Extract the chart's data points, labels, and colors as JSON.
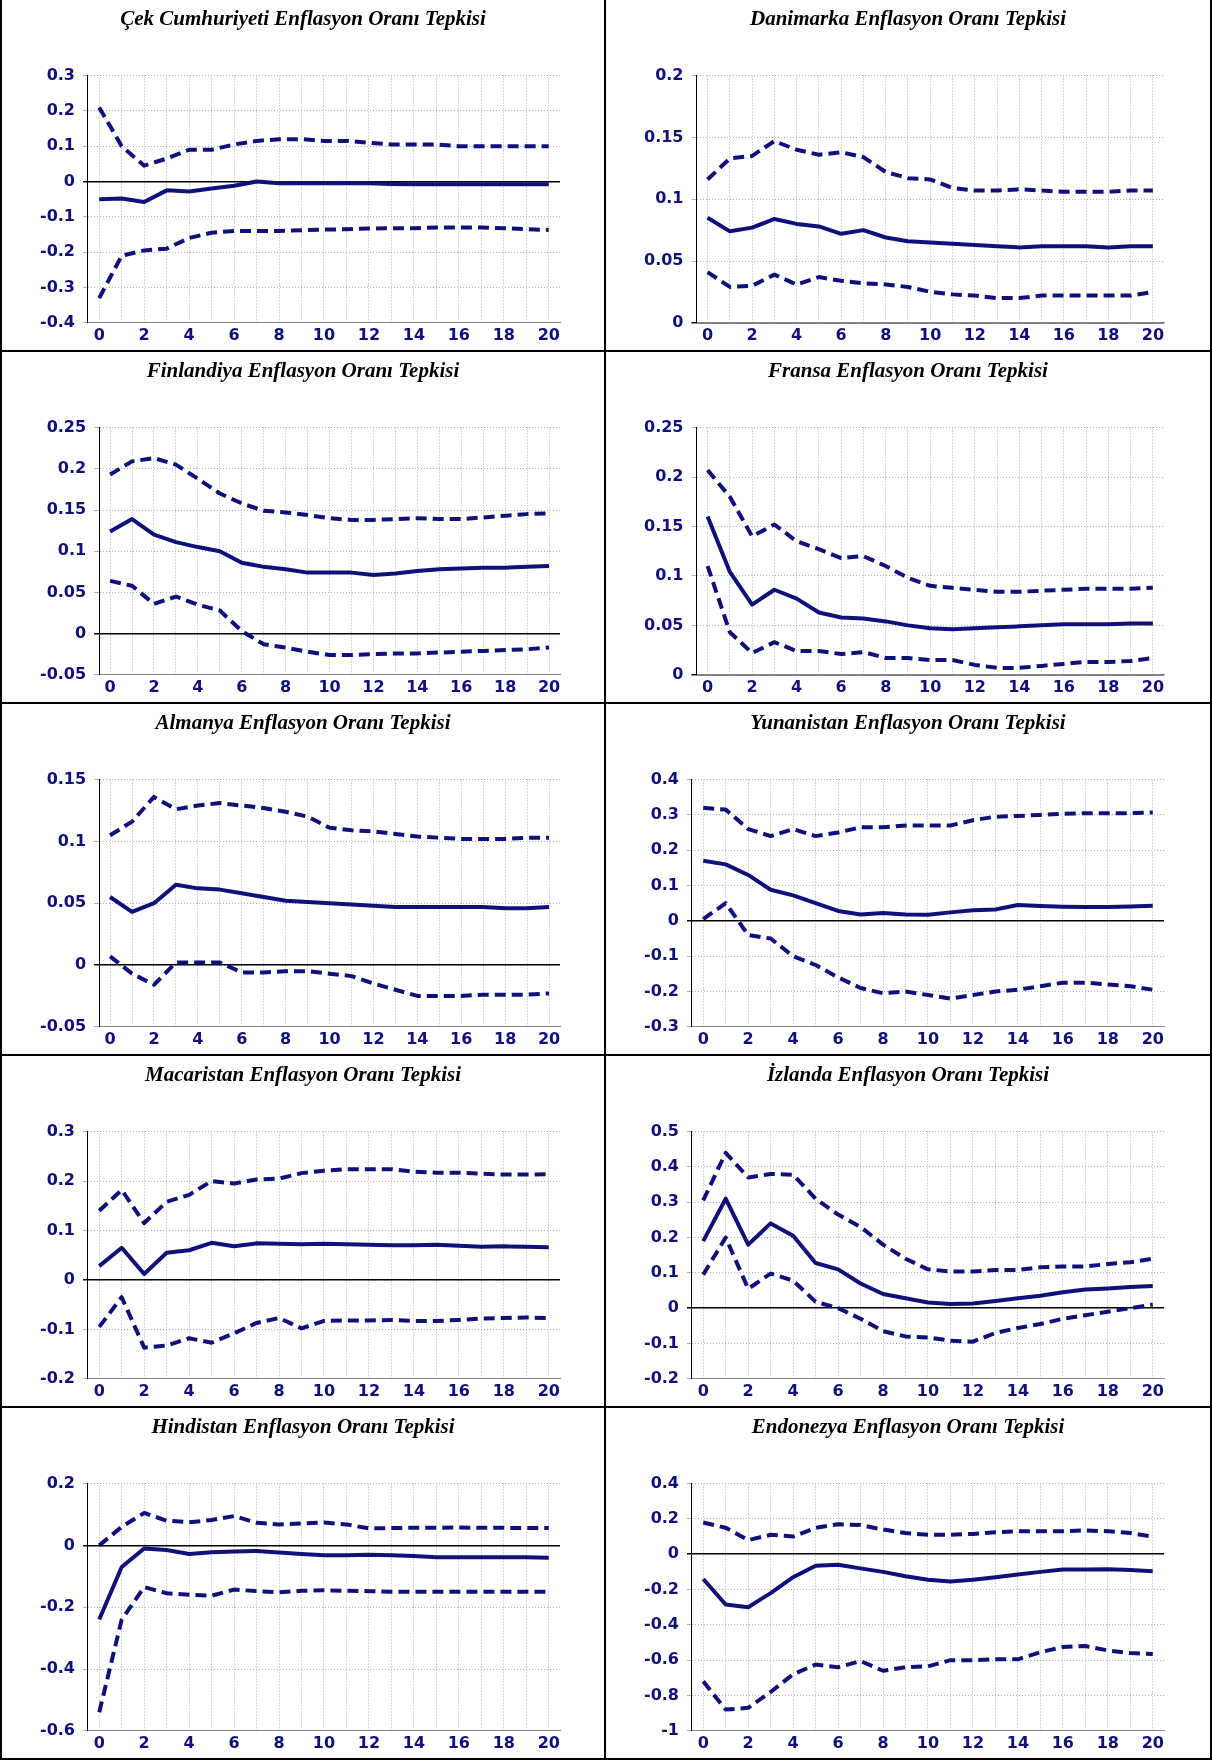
{
  "chart_data": [
    {
      "type": "line",
      "title": "Çek Cumhuriyeti Enflasyon Oranı Tepkisi",
      "x": [
        0,
        1,
        2,
        3,
        4,
        5,
        6,
        7,
        8,
        9,
        10,
        11,
        12,
        13,
        14,
        15,
        16,
        17,
        18,
        19,
        20
      ],
      "xlim": [
        -0.5,
        20.5
      ],
      "xticks": [
        0,
        {
          "value": 1,
          "label": null
        },
        2,
        {
          "value": 3,
          "label": null
        },
        4,
        {
          "value": 5,
          "label": null
        },
        6,
        {
          "value": 7,
          "label": null
        },
        8,
        {
          "value": 9,
          "label": null
        },
        10,
        {
          "value": 11,
          "label": null
        },
        12,
        {
          "value": 13,
          "label": null
        },
        14,
        {
          "value": 15,
          "label": null
        },
        16,
        {
          "value": 17,
          "label": null
        },
        18,
        {
          "value": 19,
          "label": null
        },
        20
      ],
      "ylim": [
        -0.4,
        0.3
      ],
      "yticks": [
        -0.4,
        -0.3,
        -0.2,
        -0.1,
        0,
        0.1,
        0.2,
        0.3
      ],
      "grid": true,
      "series": [
        {
          "color": "#10107a",
          "line_style": "dashed",
          "values": [
            0.21,
            0.1,
            0.045,
            0.065,
            0.09,
            0.09,
            0.105,
            0.115,
            0.12,
            0.12,
            0.115,
            0.115,
            0.11,
            0.105,
            0.105,
            0.105,
            0.1,
            0.1,
            0.1,
            0.1,
            0.1
          ]
        },
        {
          "color": "#10107a",
          "line_style": "solid",
          "values": [
            -0.05,
            -0.048,
            -0.058,
            -0.025,
            -0.028,
            -0.02,
            -0.012,
            0,
            -0.005,
            -0.004,
            -0.005,
            -0.004,
            -0.005,
            -0.007,
            -0.008,
            -0.008,
            -0.008,
            -0.008,
            -0.008,
            -0.008,
            -0.008
          ]
        },
        {
          "color": "#10107a",
          "line_style": "dashed",
          "values": [
            -0.33,
            -0.21,
            -0.195,
            -0.19,
            -0.16,
            -0.145,
            -0.14,
            -0.14,
            -0.14,
            -0.138,
            -0.136,
            -0.135,
            -0.133,
            -0.132,
            -0.132,
            -0.13,
            -0.13,
            -0.13,
            -0.132,
            -0.135,
            -0.137
          ]
        }
      ]
    },
    {
      "type": "line",
      "title": "Danimarka Enflasyon Oranı Tepkisi",
      "x": [
        0,
        1,
        2,
        3,
        4,
        5,
        6,
        7,
        8,
        9,
        10,
        11,
        12,
        13,
        14,
        15,
        16,
        17,
        18,
        19,
        20
      ],
      "xlim": [
        -0.5,
        20.5
      ],
      "xticks": [
        0,
        {
          "value": 1,
          "label": null
        },
        2,
        {
          "value": 3,
          "label": null
        },
        4,
        {
          "value": 5,
          "label": null
        },
        6,
        {
          "value": 7,
          "label": null
        },
        8,
        {
          "value": 9,
          "label": null
        },
        10,
        {
          "value": 11,
          "label": null
        },
        12,
        {
          "value": 13,
          "label": null
        },
        14,
        {
          "value": 15,
          "label": null
        },
        16,
        {
          "value": 17,
          "label": null
        },
        18,
        {
          "value": 19,
          "label": null
        },
        20
      ],
      "ylim": [
        0,
        0.2
      ],
      "yticks": [
        0,
        0.05,
        0.1,
        0.15,
        0.2
      ],
      "grid": true,
      "series": [
        {
          "color": "#10107a",
          "line_style": "dashed",
          "values": [
            0.116,
            0.133,
            0.135,
            0.147,
            0.14,
            0.136,
            0.138,
            0.134,
            0.122,
            0.117,
            0.116,
            0.109,
            0.107,
            0.107,
            0.108,
            0.107,
            0.106,
            0.106,
            0.106,
            0.107,
            0.107
          ]
        },
        {
          "color": "#10107a",
          "line_style": "solid",
          "values": [
            0.085,
            0.074,
            0.077,
            0.084,
            0.08,
            0.078,
            0.072,
            0.075,
            0.069,
            0.066,
            0.065,
            0.064,
            0.063,
            0.062,
            0.061,
            0.062,
            0.062,
            0.062,
            0.061,
            0.062,
            0.062
          ]
        },
        {
          "color": "#10107a",
          "line_style": "dashed",
          "values": [
            0.041,
            0.029,
            0.03,
            0.039,
            0.031,
            0.037,
            0.034,
            0.032,
            0.031,
            0.029,
            0.025,
            0.023,
            0.022,
            0.02,
            0.02,
            0.022,
            0.022,
            0.022,
            0.022,
            0.022,
            0.025
          ]
        }
      ]
    },
    {
      "type": "line",
      "title": "Finlandiya Enflasyon Oranı Tepkisi",
      "x": [
        0,
        1,
        2,
        3,
        4,
        5,
        6,
        7,
        8,
        9,
        10,
        11,
        12,
        13,
        14,
        15,
        16,
        17,
        18,
        19,
        20
      ],
      "xlim": [
        -0.5,
        20.5
      ],
      "xticks": [
        0,
        {
          "value": 1,
          "label": null
        },
        2,
        {
          "value": 3,
          "label": null
        },
        4,
        {
          "value": 5,
          "label": null
        },
        6,
        {
          "value": 7,
          "label": null
        },
        8,
        {
          "value": 9,
          "label": null
        },
        10,
        {
          "value": 11,
          "label": null
        },
        12,
        {
          "value": 13,
          "label": null
        },
        14,
        {
          "value": 15,
          "label": null
        },
        16,
        {
          "value": 17,
          "label": null
        },
        18,
        {
          "value": 19,
          "label": null
        },
        20
      ],
      "ylim": [
        -0.05,
        0.25
      ],
      "yticks": [
        -0.05,
        0,
        0.05,
        0.1,
        0.15,
        0.2,
        0.25
      ],
      "grid": true,
      "series": [
        {
          "color": "#10107a",
          "line_style": "dashed",
          "values": [
            0.193,
            0.209,
            0.213,
            0.205,
            0.188,
            0.17,
            0.158,
            0.149,
            0.147,
            0.144,
            0.14,
            0.138,
            0.138,
            0.139,
            0.14,
            0.139,
            0.139,
            0.141,
            0.143,
            0.145,
            0.146
          ]
        },
        {
          "color": "#10107a",
          "line_style": "solid",
          "values": [
            0.124,
            0.139,
            0.12,
            0.111,
            0.105,
            0.1,
            0.086,
            0.081,
            0.078,
            0.074,
            0.074,
            0.074,
            0.071,
            0.073,
            0.076,
            0.078,
            0.079,
            0.08,
            0.08,
            0.081,
            0.082
          ]
        },
        {
          "color": "#10107a",
          "line_style": "dashed",
          "values": [
            0.064,
            0.058,
            0.036,
            0.045,
            0.035,
            0.028,
            0.003,
            -0.013,
            -0.017,
            -0.022,
            -0.026,
            -0.026,
            -0.025,
            -0.024,
            -0.024,
            -0.023,
            -0.022,
            -0.021,
            -0.02,
            -0.019,
            -0.017
          ]
        }
      ]
    },
    {
      "type": "line",
      "title": "Fransa Enflasyon Oranı Tepkisi",
      "x": [
        0,
        1,
        2,
        3,
        4,
        5,
        6,
        7,
        8,
        9,
        10,
        11,
        12,
        13,
        14,
        15,
        16,
        17,
        18,
        19,
        20
      ],
      "xlim": [
        -0.5,
        20.5
      ],
      "xticks": [
        0,
        {
          "value": 1,
          "label": null
        },
        2,
        {
          "value": 3,
          "label": null
        },
        4,
        {
          "value": 5,
          "label": null
        },
        6,
        {
          "value": 7,
          "label": null
        },
        8,
        {
          "value": 9,
          "label": null
        },
        10,
        {
          "value": 11,
          "label": null
        },
        12,
        {
          "value": 13,
          "label": null
        },
        14,
        {
          "value": 15,
          "label": null
        },
        16,
        {
          "value": 17,
          "label": null
        },
        18,
        {
          "value": 19,
          "label": null
        },
        20
      ],
      "ylim": [
        0,
        0.25
      ],
      "yticks": [
        0,
        0.05,
        0.1,
        0.15,
        0.2,
        0.25
      ],
      "grid": true,
      "series": [
        {
          "color": "#10107a",
          "line_style": "dashed",
          "values": [
            0.207,
            0.18,
            0.14,
            0.152,
            0.135,
            0.127,
            0.118,
            0.12,
            0.11,
            0.098,
            0.09,
            0.088,
            0.086,
            0.084,
            0.084,
            0.085,
            0.086,
            0.087,
            0.087,
            0.087,
            0.088
          ]
        },
        {
          "color": "#10107a",
          "line_style": "solid",
          "values": [
            0.16,
            0.104,
            0.071,
            0.086,
            0.077,
            0.063,
            0.058,
            0.057,
            0.054,
            0.05,
            0.047,
            0.046,
            0.047,
            0.048,
            0.049,
            0.05,
            0.051,
            0.051,
            0.051,
            0.052,
            0.052
          ]
        },
        {
          "color": "#10107a",
          "line_style": "dashed",
          "values": [
            0.11,
            0.043,
            0.022,
            0.033,
            0.024,
            0.024,
            0.021,
            0.023,
            0.017,
            0.017,
            0.015,
            0.015,
            0.01,
            0.007,
            0.007,
            0.009,
            0.011,
            0.013,
            0.013,
            0.014,
            0.017
          ]
        }
      ]
    },
    {
      "type": "line",
      "title": "Almanya Enflasyon Oranı Tepkisi",
      "x": [
        0,
        1,
        2,
        3,
        4,
        5,
        6,
        7,
        8,
        9,
        10,
        11,
        12,
        13,
        14,
        15,
        16,
        17,
        18,
        19,
        20
      ],
      "xlim": [
        -0.5,
        20.5
      ],
      "xticks": [
        0,
        {
          "value": 1,
          "label": null
        },
        2,
        {
          "value": 3,
          "label": null
        },
        4,
        {
          "value": 5,
          "label": null
        },
        6,
        {
          "value": 7,
          "label": null
        },
        8,
        {
          "value": 9,
          "label": null
        },
        10,
        {
          "value": 11,
          "label": null
        },
        12,
        {
          "value": 13,
          "label": null
        },
        14,
        {
          "value": 15,
          "label": null
        },
        16,
        {
          "value": 17,
          "label": null
        },
        18,
        {
          "value": 19,
          "label": null
        },
        20
      ],
      "ylim": [
        -0.05,
        0.15
      ],
      "yticks": [
        -0.05,
        0,
        0.05,
        0.1,
        0.15
      ],
      "grid": true,
      "series": [
        {
          "color": "#10107a",
          "line_style": "dashed",
          "values": [
            0.105,
            0.116,
            0.136,
            0.126,
            0.129,
            0.131,
            0.129,
            0.127,
            0.124,
            0.12,
            0.111,
            0.109,
            0.108,
            0.106,
            0.104,
            0.103,
            0.102,
            0.102,
            0.102,
            0.103,
            0.103
          ]
        },
        {
          "color": "#10107a",
          "line_style": "solid",
          "values": [
            0.055,
            0.043,
            0.05,
            0.065,
            0.062,
            0.061,
            0.058,
            0.055,
            0.052,
            0.051,
            0.05,
            0.049,
            0.048,
            0.047,
            0.047,
            0.047,
            0.047,
            0.047,
            0.046,
            0.046,
            0.047
          ]
        },
        {
          "color": "#10107a",
          "line_style": "dashed",
          "values": [
            0.007,
            -0.007,
            -0.016,
            0.002,
            0.002,
            0.002,
            -0.006,
            -0.006,
            -0.005,
            -0.005,
            -0.007,
            -0.009,
            -0.015,
            -0.02,
            -0.025,
            -0.025,
            -0.025,
            -0.024,
            -0.024,
            -0.024,
            -0.023
          ]
        }
      ]
    },
    {
      "type": "line",
      "title": "Yunanistan Enflasyon Oranı Tepkisi",
      "x": [
        0,
        1,
        2,
        3,
        4,
        5,
        6,
        7,
        8,
        9,
        10,
        11,
        12,
        13,
        14,
        15,
        16,
        17,
        18,
        19,
        20
      ],
      "xlim": [
        -0.5,
        20.5
      ],
      "xticks": [
        0,
        {
          "value": 1,
          "label": null
        },
        2,
        {
          "value": 3,
          "label": null
        },
        4,
        {
          "value": 5,
          "label": null
        },
        6,
        {
          "value": 7,
          "label": null
        },
        8,
        {
          "value": 9,
          "label": null
        },
        10,
        {
          "value": 11,
          "label": null
        },
        12,
        {
          "value": 13,
          "label": null
        },
        14,
        {
          "value": 15,
          "label": null
        },
        16,
        {
          "value": 17,
          "label": null
        },
        18,
        {
          "value": 19,
          "label": null
        },
        20
      ],
      "ylim": [
        -0.3,
        0.4
      ],
      "yticks": [
        -0.3,
        -0.2,
        -0.1,
        0,
        0.1,
        0.2,
        0.3,
        0.4
      ],
      "grid": true,
      "series": [
        {
          "color": "#10107a",
          "line_style": "dashed",
          "values": [
            0.32,
            0.315,
            0.26,
            0.24,
            0.26,
            0.24,
            0.25,
            0.265,
            0.265,
            0.27,
            0.27,
            0.27,
            0.285,
            0.295,
            0.297,
            0.3,
            0.303,
            0.305,
            0.305,
            0.305,
            0.307
          ]
        },
        {
          "color": "#10107a",
          "line_style": "solid",
          "values": [
            0.17,
            0.16,
            0.13,
            0.088,
            0.072,
            0.05,
            0.028,
            0.018,
            0.022,
            0.018,
            0.017,
            0.024,
            0.03,
            0.032,
            0.045,
            0.042,
            0.04,
            0.039,
            0.039,
            0.041,
            0.043
          ]
        },
        {
          "color": "#10107a",
          "line_style": "dashed",
          "values": [
            0.005,
            0.05,
            -0.04,
            -0.05,
            -0.1,
            -0.125,
            -0.16,
            -0.19,
            -0.205,
            -0.2,
            -0.21,
            -0.22,
            -0.21,
            -0.2,
            -0.195,
            -0.185,
            -0.175,
            -0.175,
            -0.18,
            -0.185,
            -0.195
          ]
        }
      ]
    },
    {
      "type": "line",
      "title": "Macaristan Enflasyon Oranı Tepkisi",
      "x": [
        0,
        1,
        2,
        3,
        4,
        5,
        6,
        7,
        8,
        9,
        10,
        11,
        12,
        13,
        14,
        15,
        16,
        17,
        18,
        19,
        20
      ],
      "xlim": [
        -0.5,
        20.5
      ],
      "xticks": [
        0,
        {
          "value": 1,
          "label": null
        },
        2,
        {
          "value": 3,
          "label": null
        },
        4,
        {
          "value": 5,
          "label": null
        },
        6,
        {
          "value": 7,
          "label": null
        },
        8,
        {
          "value": 9,
          "label": null
        },
        10,
        {
          "value": 11,
          "label": null
        },
        12,
        {
          "value": 13,
          "label": null
        },
        14,
        {
          "value": 15,
          "label": null
        },
        16,
        {
          "value": 17,
          "label": null
        },
        18,
        {
          "value": 19,
          "label": null
        },
        20
      ],
      "ylim": [
        -0.2,
        0.3
      ],
      "yticks": [
        -0.2,
        -0.1,
        0,
        0.1,
        0.2,
        0.3
      ],
      "grid": true,
      "series": [
        {
          "color": "#10107a",
          "line_style": "dashed",
          "values": [
            0.14,
            0.182,
            0.115,
            0.158,
            0.172,
            0.2,
            0.195,
            0.203,
            0.205,
            0.216,
            0.221,
            0.224,
            0.224,
            0.224,
            0.219,
            0.217,
            0.217,
            0.215,
            0.213,
            0.213,
            0.214
          ]
        },
        {
          "color": "#10107a",
          "line_style": "solid",
          "values": [
            0.028,
            0.065,
            0.012,
            0.055,
            0.06,
            0.075,
            0.068,
            0.074,
            0.073,
            0.072,
            0.073,
            0.072,
            0.071,
            0.07,
            0.07,
            0.071,
            0.069,
            0.067,
            0.068,
            0.067,
            0.066
          ]
        },
        {
          "color": "#10107a",
          "line_style": "dashed",
          "values": [
            -0.095,
            -0.035,
            -0.137,
            -0.133,
            -0.118,
            -0.127,
            -0.108,
            -0.087,
            -0.077,
            -0.098,
            -0.083,
            -0.082,
            -0.082,
            -0.081,
            -0.083,
            -0.083,
            -0.081,
            -0.078,
            -0.077,
            -0.076,
            -0.077
          ]
        }
      ]
    },
    {
      "type": "line",
      "title": "İzlanda Enflasyon Oranı Tepkisi",
      "x": [
        0,
        1,
        2,
        3,
        4,
        5,
        6,
        7,
        8,
        9,
        10,
        11,
        12,
        13,
        14,
        15,
        16,
        17,
        18,
        19,
        20
      ],
      "xlim": [
        -0.5,
        20.5
      ],
      "xticks": [
        0,
        {
          "value": 1,
          "label": null
        },
        2,
        {
          "value": 3,
          "label": null
        },
        4,
        {
          "value": 5,
          "label": null
        },
        6,
        {
          "value": 7,
          "label": null
        },
        8,
        {
          "value": 9,
          "label": null
        },
        10,
        {
          "value": 11,
          "label": null
        },
        12,
        {
          "value": 13,
          "label": null
        },
        14,
        {
          "value": 15,
          "label": null
        },
        16,
        {
          "value": 17,
          "label": null
        },
        18,
        {
          "value": 19,
          "label": null
        },
        20
      ],
      "ylim": [
        -0.2,
        0.5
      ],
      "yticks": [
        -0.2,
        -0.1,
        0,
        0.1,
        0.2,
        0.3,
        0.4,
        0.5
      ],
      "grid": true,
      "series": [
        {
          "color": "#10107a",
          "line_style": "dashed",
          "values": [
            0.305,
            0.44,
            0.37,
            0.38,
            0.378,
            0.31,
            0.265,
            0.23,
            0.18,
            0.14,
            0.11,
            0.104,
            0.104,
            0.108,
            0.108,
            0.116,
            0.118,
            0.118,
            0.125,
            0.13,
            0.14
          ]
        },
        {
          "color": "#10107a",
          "line_style": "solid",
          "values": [
            0.19,
            0.31,
            0.18,
            0.24,
            0.205,
            0.128,
            0.11,
            0.07,
            0.04,
            0.028,
            0.016,
            0.012,
            0.013,
            0.02,
            0.028,
            0.035,
            0.045,
            0.053,
            0.056,
            0.06,
            0.063
          ]
        },
        {
          "color": "#10107a",
          "line_style": "dashed",
          "values": [
            0.095,
            0.2,
            0.055,
            0.098,
            0.078,
            0.018,
            0,
            -0.03,
            -0.065,
            -0.08,
            -0.083,
            -0.092,
            -0.095,
            -0.07,
            -0.056,
            -0.045,
            -0.03,
            -0.02,
            -0.01,
            0,
            0.01
          ]
        }
      ]
    },
    {
      "type": "line",
      "title": "Hindistan Enflasyon Oranı Tepkisi",
      "x": [
        0,
        1,
        2,
        3,
        4,
        5,
        6,
        7,
        8,
        9,
        10,
        11,
        12,
        13,
        14,
        15,
        16,
        17,
        18,
        19,
        20
      ],
      "xlim": [
        -0.5,
        20.5
      ],
      "xticks": [
        0,
        {
          "value": 1,
          "label": null
        },
        2,
        {
          "value": 3,
          "label": null
        },
        4,
        {
          "value": 5,
          "label": null
        },
        6,
        {
          "value": 7,
          "label": null
        },
        8,
        {
          "value": 9,
          "label": null
        },
        10,
        {
          "value": 11,
          "label": null
        },
        12,
        {
          "value": 13,
          "label": null
        },
        14,
        {
          "value": 15,
          "label": null
        },
        16,
        {
          "value": 17,
          "label": null
        },
        18,
        {
          "value": 19,
          "label": null
        },
        20
      ],
      "ylim": [
        -0.6,
        0.2
      ],
      "yticks": [
        -0.6,
        -0.4,
        -0.2,
        0,
        0.2
      ],
      "grid": true,
      "series": [
        {
          "color": "#10107a",
          "line_style": "dashed",
          "values": [
            0,
            0.06,
            0.105,
            0.08,
            0.075,
            0.082,
            0.095,
            0.073,
            0.068,
            0.071,
            0.074,
            0.068,
            0.055,
            0.056,
            0.057,
            0.057,
            0.058,
            0.057,
            0.057,
            0.056,
            0.056
          ]
        },
        {
          "color": "#10107a",
          "line_style": "solid",
          "values": [
            -0.24,
            -0.07,
            -0.01,
            -0.015,
            -0.028,
            -0.022,
            -0.02,
            -0.018,
            -0.023,
            -0.028,
            -0.032,
            -0.032,
            -0.03,
            -0.032,
            -0.034,
            -0.038,
            -0.038,
            -0.038,
            -0.038,
            -0.038,
            -0.04
          ]
        },
        {
          "color": "#10107a",
          "line_style": "dashed",
          "values": [
            -0.54,
            -0.24,
            -0.135,
            -0.155,
            -0.16,
            -0.163,
            -0.143,
            -0.148,
            -0.152,
            -0.147,
            -0.145,
            -0.147,
            -0.148,
            -0.15,
            -0.15,
            -0.15,
            -0.15,
            -0.15,
            -0.15,
            -0.15,
            -0.15
          ]
        }
      ]
    },
    {
      "type": "line",
      "title": "Endonezya Enflasyon Oranı Tepkisi",
      "x": [
        0,
        1,
        2,
        3,
        4,
        5,
        6,
        7,
        8,
        9,
        10,
        11,
        12,
        13,
        14,
        15,
        16,
        17,
        18,
        19,
        20
      ],
      "xlim": [
        -0.5,
        20.5
      ],
      "xticks": [
        0,
        {
          "value": 1,
          "label": null
        },
        2,
        {
          "value": 3,
          "label": null
        },
        4,
        {
          "value": 5,
          "label": null
        },
        6,
        {
          "value": 7,
          "label": null
        },
        8,
        {
          "value": 9,
          "label": null
        },
        10,
        {
          "value": 11,
          "label": null
        },
        12,
        {
          "value": 13,
          "label": null
        },
        14,
        {
          "value": 15,
          "label": null
        },
        16,
        {
          "value": 17,
          "label": null
        },
        18,
        {
          "value": 19,
          "label": null
        },
        20
      ],
      "ylim": [
        -1,
        0.4
      ],
      "yticks": [
        -1,
        -0.8,
        -0.6,
        -0.4,
        -0.2,
        0,
        0.2,
        0.4
      ],
      "grid": true,
      "series": [
        {
          "color": "#10107a",
          "line_style": "dashed",
          "values": [
            0.18,
            0.15,
            0.08,
            0.11,
            0.1,
            0.15,
            0.17,
            0.165,
            0.14,
            0.12,
            0.11,
            0.11,
            0.115,
            0.125,
            0.13,
            0.13,
            0.13,
            0.135,
            0.13,
            0.12,
            0.1
          ]
        },
        {
          "color": "#10107a",
          "line_style": "solid",
          "values": [
            -0.14,
            -0.285,
            -0.3,
            -0.22,
            -0.13,
            -0.065,
            -0.06,
            -0.08,
            -0.1,
            -0.125,
            -0.145,
            -0.155,
            -0.145,
            -0.13,
            -0.115,
            -0.1,
            -0.087,
            -0.087,
            -0.085,
            -0.09,
            -0.097
          ]
        },
        {
          "color": "#10107a",
          "line_style": "dashed",
          "values": [
            -0.72,
            -0.88,
            -0.87,
            -0.78,
            -0.68,
            -0.625,
            -0.64,
            -0.605,
            -0.66,
            -0.64,
            -0.635,
            -0.6,
            -0.6,
            -0.595,
            -0.595,
            -0.555,
            -0.525,
            -0.52,
            -0.545,
            -0.56,
            -0.565
          ]
        }
      ]
    }
  ]
}
